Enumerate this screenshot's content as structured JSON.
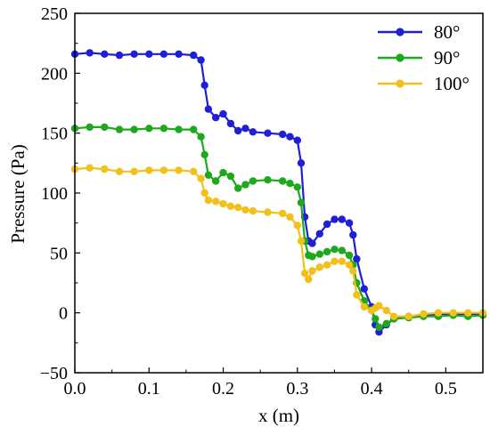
{
  "chart_data": {
    "type": "line",
    "xlabel": "x (m)",
    "ylabel": "Pressure (Pa)",
    "xlim": [
      0.0,
      0.55
    ],
    "ylim": [
      -50,
      250
    ],
    "xticks": [
      0.0,
      0.1,
      0.2,
      0.3,
      0.4,
      0.5
    ],
    "xtick_labels": [
      "0.0",
      "0.1",
      "0.2",
      "0.3",
      "0.4",
      "0.5"
    ],
    "yticks": [
      -50,
      0,
      50,
      100,
      150,
      200,
      250
    ],
    "ytick_labels": [
      "−50",
      "0",
      "50",
      "100",
      "150",
      "200",
      "250"
    ],
    "grid": false,
    "legend_position": "top-right",
    "series": [
      {
        "name": "80°",
        "color": "#1f1fd6",
        "points": [
          [
            0.0,
            216
          ],
          [
            0.02,
            217
          ],
          [
            0.04,
            216
          ],
          [
            0.06,
            215
          ],
          [
            0.08,
            216
          ],
          [
            0.1,
            216
          ],
          [
            0.12,
            216
          ],
          [
            0.14,
            216
          ],
          [
            0.16,
            215
          ],
          [
            0.17,
            211
          ],
          [
            0.175,
            190
          ],
          [
            0.18,
            170
          ],
          [
            0.19,
            163
          ],
          [
            0.2,
            166
          ],
          [
            0.21,
            158
          ],
          [
            0.22,
            152
          ],
          [
            0.23,
            154
          ],
          [
            0.24,
            151
          ],
          [
            0.26,
            150
          ],
          [
            0.28,
            149
          ],
          [
            0.29,
            147
          ],
          [
            0.3,
            144
          ],
          [
            0.305,
            125
          ],
          [
            0.31,
            80
          ],
          [
            0.315,
            60
          ],
          [
            0.32,
            58
          ],
          [
            0.33,
            66
          ],
          [
            0.34,
            74
          ],
          [
            0.35,
            78
          ],
          [
            0.36,
            78
          ],
          [
            0.37,
            75
          ],
          [
            0.375,
            65
          ],
          [
            0.38,
            45
          ],
          [
            0.39,
            20
          ],
          [
            0.4,
            5
          ],
          [
            0.405,
            -10
          ],
          [
            0.41,
            -16
          ],
          [
            0.42,
            -10
          ],
          [
            0.43,
            -5
          ],
          [
            0.45,
            -3
          ],
          [
            0.47,
            -2
          ],
          [
            0.49,
            -1
          ],
          [
            0.51,
            -1
          ],
          [
            0.53,
            -1
          ],
          [
            0.55,
            -1
          ]
        ]
      },
      {
        "name": "90°",
        "color": "#1ea81e",
        "points": [
          [
            0.0,
            154
          ],
          [
            0.02,
            155
          ],
          [
            0.04,
            155
          ],
          [
            0.06,
            153
          ],
          [
            0.08,
            153
          ],
          [
            0.1,
            154
          ],
          [
            0.12,
            154
          ],
          [
            0.14,
            153
          ],
          [
            0.16,
            153
          ],
          [
            0.17,
            147
          ],
          [
            0.175,
            132
          ],
          [
            0.18,
            115
          ],
          [
            0.19,
            110
          ],
          [
            0.2,
            117
          ],
          [
            0.21,
            114
          ],
          [
            0.22,
            104
          ],
          [
            0.23,
            107
          ],
          [
            0.24,
            110
          ],
          [
            0.26,
            111
          ],
          [
            0.28,
            110
          ],
          [
            0.29,
            108
          ],
          [
            0.3,
            105
          ],
          [
            0.305,
            92
          ],
          [
            0.31,
            60
          ],
          [
            0.315,
            48
          ],
          [
            0.32,
            47
          ],
          [
            0.33,
            49
          ],
          [
            0.34,
            51
          ],
          [
            0.35,
            53
          ],
          [
            0.36,
            52
          ],
          [
            0.37,
            48
          ],
          [
            0.375,
            40
          ],
          [
            0.38,
            25
          ],
          [
            0.39,
            10
          ],
          [
            0.4,
            2
          ],
          [
            0.405,
            -5
          ],
          [
            0.41,
            -12
          ],
          [
            0.42,
            -9
          ],
          [
            0.43,
            -5
          ],
          [
            0.45,
            -4
          ],
          [
            0.47,
            -3
          ],
          [
            0.49,
            -3
          ],
          [
            0.51,
            -2
          ],
          [
            0.53,
            -3
          ],
          [
            0.55,
            -2
          ]
        ]
      },
      {
        "name": "100°",
        "color": "#f2c01a",
        "points": [
          [
            0.0,
            120
          ],
          [
            0.02,
            121
          ],
          [
            0.04,
            120
          ],
          [
            0.06,
            118
          ],
          [
            0.08,
            118
          ],
          [
            0.1,
            119
          ],
          [
            0.12,
            119
          ],
          [
            0.14,
            119
          ],
          [
            0.16,
            118
          ],
          [
            0.17,
            112
          ],
          [
            0.175,
            100
          ],
          [
            0.18,
            94
          ],
          [
            0.19,
            93
          ],
          [
            0.2,
            91
          ],
          [
            0.21,
            89
          ],
          [
            0.22,
            88
          ],
          [
            0.23,
            86
          ],
          [
            0.24,
            85
          ],
          [
            0.26,
            84
          ],
          [
            0.28,
            83
          ],
          [
            0.29,
            80
          ],
          [
            0.3,
            73
          ],
          [
            0.305,
            60
          ],
          [
            0.31,
            33
          ],
          [
            0.315,
            28
          ],
          [
            0.32,
            35
          ],
          [
            0.33,
            38
          ],
          [
            0.34,
            40
          ],
          [
            0.35,
            43
          ],
          [
            0.36,
            43
          ],
          [
            0.37,
            40
          ],
          [
            0.375,
            35
          ],
          [
            0.38,
            15
          ],
          [
            0.39,
            5
          ],
          [
            0.4,
            2
          ],
          [
            0.405,
            4
          ],
          [
            0.41,
            6
          ],
          [
            0.42,
            2
          ],
          [
            0.43,
            -3
          ],
          [
            0.45,
            -3
          ],
          [
            0.47,
            -1
          ],
          [
            0.49,
            0
          ],
          [
            0.51,
            0
          ],
          [
            0.53,
            0
          ],
          [
            0.55,
            0
          ]
        ]
      }
    ]
  }
}
